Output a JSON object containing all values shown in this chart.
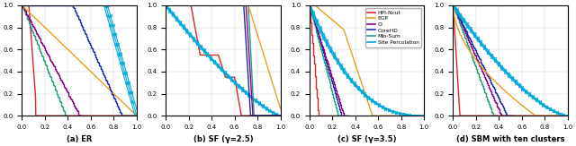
{
  "colors": {
    "HPI-Ncut": "#d62728",
    "EGP": "#e8a020",
    "CI": "#8B008B",
    "CoreHD": "#1a2eaa",
    "Min-Sum": "#20a080",
    "Site Percolation": "#00aadd"
  },
  "legend_labels": [
    "HPI-Ncut",
    "EGP",
    "CI",
    "CoreHD",
    "Min-Sum",
    "Site Percolation"
  ],
  "titles": [
    "(a) ER",
    "(b) SF (γ=2.5)",
    "(c) SF (γ=3.5)",
    "(d) SBM with ten clusters"
  ],
  "yticks": [
    0,
    0.2,
    0.4,
    0.6,
    0.8,
    1.0
  ],
  "xticks": [
    0,
    0.2,
    0.4,
    0.6,
    0.8,
    1.0
  ],
  "figsize": [
    6.4,
    1.63
  ],
  "dpi": 100
}
